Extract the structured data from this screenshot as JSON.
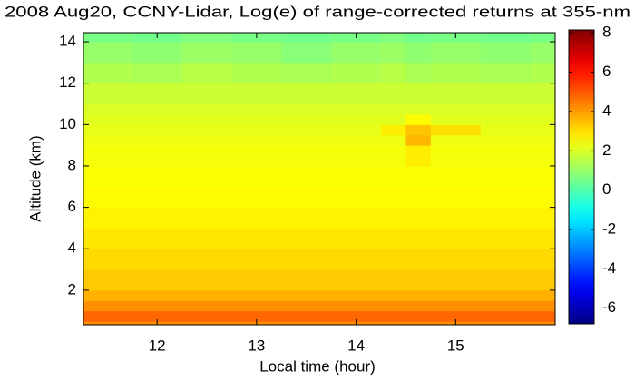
{
  "chart_data": {
    "type": "heatmap",
    "title": "2008 Aug20, CCNY-Lidar, Log(e) of range-corrected returns at 355-nm",
    "x_label": "Local time (hour)",
    "y_label": "Altitude (km)",
    "xlim": [
      11.26,
      16.0
    ],
    "ylim": [
      0.33,
      14.44
    ],
    "xticks": [
      12,
      13,
      14,
      15
    ],
    "yticks": [
      2,
      4,
      6,
      8,
      10,
      12,
      14
    ],
    "x_bins": [
      11.26,
      11.75,
      12.25,
      12.75,
      13.25,
      13.75,
      14.25,
      14.5,
      14.75,
      15.25,
      15.75,
      16.0
    ],
    "y_bins": [
      0.33,
      0.5,
      1.0,
      1.5,
      2.0,
      3.0,
      4.0,
      5.0,
      6.0,
      7.0,
      8.0,
      9.0,
      9.5,
      10.0,
      10.5,
      11.0,
      12.0,
      13.0,
      14.0,
      14.44
    ],
    "z": [
      [
        4.2,
        4.2,
        4.2,
        4.2,
        4.2,
        4.2,
        4.2,
        4.2,
        4.2,
        4.2,
        4.2
      ],
      [
        4.8,
        4.8,
        4.8,
        4.8,
        4.8,
        4.8,
        4.8,
        4.8,
        4.8,
        4.8,
        4.8
      ],
      [
        4.2,
        4.2,
        4.2,
        4.2,
        4.2,
        4.2,
        4.2,
        4.2,
        4.2,
        4.2,
        4.2
      ],
      [
        3.7,
        3.7,
        3.7,
        3.7,
        3.7,
        3.7,
        3.7,
        3.7,
        3.7,
        3.7,
        3.7
      ],
      [
        3.3,
        3.3,
        3.3,
        3.3,
        3.3,
        3.3,
        3.3,
        3.3,
        3.3,
        3.3,
        3.3
      ],
      [
        3.1,
        3.1,
        3.1,
        3.1,
        3.1,
        3.1,
        3.1,
        3.1,
        3.1,
        3.1,
        3.1
      ],
      [
        2.9,
        2.9,
        2.9,
        2.9,
        2.9,
        2.9,
        2.9,
        2.9,
        2.9,
        2.9,
        2.9
      ],
      [
        2.7,
        2.7,
        2.7,
        2.7,
        2.7,
        2.7,
        2.7,
        2.7,
        2.7,
        2.7,
        2.7
      ],
      [
        2.6,
        2.6,
        2.6,
        2.6,
        2.6,
        2.6,
        2.6,
        2.6,
        2.6,
        2.6,
        2.6
      ],
      [
        2.5,
        2.5,
        2.5,
        2.5,
        2.5,
        2.5,
        2.5,
        2.5,
        2.5,
        2.5,
        2.5
      ],
      [
        2.4,
        2.4,
        2.4,
        2.4,
        2.4,
        2.4,
        2.4,
        2.8,
        2.4,
        2.4,
        2.4
      ],
      [
        2.3,
        2.3,
        2.3,
        2.3,
        2.3,
        2.3,
        2.3,
        3.6,
        2.3,
        2.3,
        2.3
      ],
      [
        2.2,
        2.2,
        2.2,
        2.2,
        2.2,
        2.2,
        2.8,
        3.4,
        3.0,
        2.2,
        2.2
      ],
      [
        2.1,
        2.1,
        2.1,
        2.1,
        2.1,
        2.1,
        2.1,
        2.6,
        2.1,
        2.1,
        2.1
      ],
      [
        2.0,
        2.0,
        2.0,
        2.0,
        2.0,
        2.0,
        2.0,
        2.0,
        2.0,
        2.0,
        2.0
      ],
      [
        1.8,
        1.8,
        1.8,
        1.8,
        1.8,
        1.8,
        1.8,
        1.8,
        1.8,
        1.8,
        1.8
      ],
      [
        1.4,
        1.3,
        1.5,
        1.4,
        1.3,
        1.4,
        1.5,
        1.3,
        1.4,
        1.3,
        1.4
      ],
      [
        1.0,
        0.9,
        1.1,
        1.0,
        0.8,
        1.0,
        1.1,
        0.9,
        1.0,
        0.9,
        1.0
      ],
      [
        0.6,
        0.5,
        0.7,
        0.6,
        0.5,
        0.6,
        0.7,
        0.5,
        0.6,
        0.5,
        0.6
      ]
    ],
    "clim": [
      -6.8,
      8.15
    ],
    "cticks": [
      -6,
      -4,
      -2,
      0,
      2,
      4,
      6,
      8
    ],
    "colormap": "jet"
  }
}
